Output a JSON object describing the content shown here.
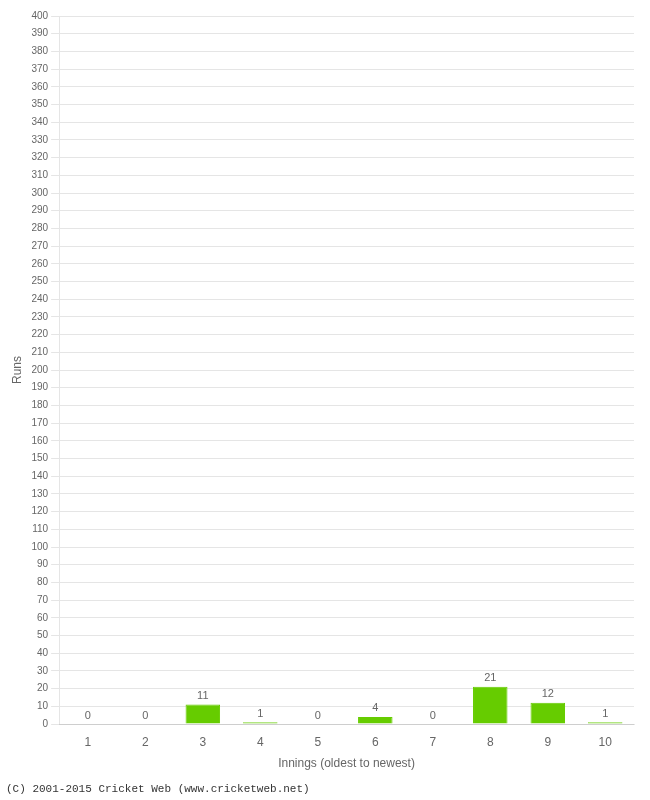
{
  "chart_data": {
    "type": "bar",
    "categories": [
      1,
      2,
      3,
      4,
      5,
      6,
      7,
      8,
      9,
      10
    ],
    "values": [
      0,
      0,
      11,
      1,
      0,
      4,
      0,
      21,
      12,
      1
    ],
    "color": "#66cc00",
    "xlabel": "Innings (oldest to newest)",
    "ylabel": "Runs",
    "ylim": [
      0,
      400
    ],
    "yticks": [
      0,
      10,
      20,
      30,
      40,
      50,
      60,
      70,
      80,
      90,
      100,
      110,
      120,
      130,
      140,
      150,
      160,
      170,
      180,
      190,
      200,
      210,
      220,
      230,
      240,
      250,
      260,
      270,
      280,
      290,
      300,
      310,
      320,
      330,
      340,
      350,
      360,
      370,
      380,
      390,
      400
    ],
    "grid": true,
    "data_labels": true,
    "footer": "(C) 2001-2015 Cricket Web (www.cricketweb.net)"
  }
}
